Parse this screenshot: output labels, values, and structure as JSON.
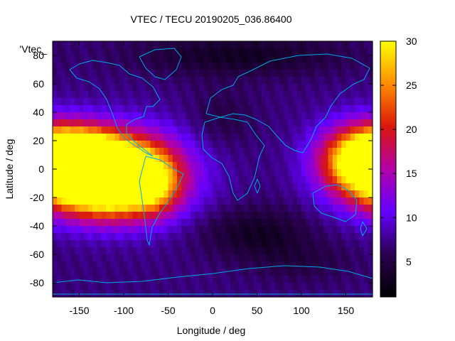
{
  "chart_data": {
    "type": "heatmap",
    "title": "VTEC / TECU 20190205_036.86400",
    "legend_key": "'Vtec_",
    "xlabel": "Longitude / deg",
    "ylabel": "Latitude / deg",
    "xlim": [
      -180,
      180
    ],
    "ylim": [
      -90,
      90
    ],
    "x_ticks": [
      -150,
      -100,
      -50,
      0,
      50,
      100,
      150
    ],
    "y_ticks": [
      -80,
      -60,
      -40,
      -20,
      0,
      20,
      40,
      60,
      80
    ],
    "colorbar": {
      "range": [
        1,
        30
      ],
      "ticks": [
        5,
        10,
        15,
        20,
        25,
        30
      ],
      "palette": [
        "#000000",
        "#2a0050",
        "#6400ff",
        "#b400a8",
        "#d9180c",
        "#ff8c00",
        "#ffff00"
      ]
    },
    "grid_step_deg": 5,
    "features": [
      {
        "lon": -150,
        "lat": 8,
        "value": 27,
        "sx": 40,
        "sy": 14
      },
      {
        "lon": -120,
        "lat": -12,
        "value": 26,
        "sx": 45,
        "sy": 16
      },
      {
        "lon": -95,
        "lat": 0,
        "value": 13,
        "sx": 50,
        "sy": 20
      },
      {
        "lon": -65,
        "lat": -10,
        "value": 8,
        "sx": 20,
        "sy": 16
      },
      {
        "lon": 170,
        "lat": 5,
        "value": 20,
        "sx": 35,
        "sy": 18
      },
      {
        "lon": 50,
        "lat": -45,
        "value": -4,
        "sx": 40,
        "sy": 12
      },
      {
        "lon": 10,
        "lat": 35,
        "value": -2,
        "sx": 25,
        "sy": 15
      },
      {
        "lon": 30,
        "lat": 80,
        "value": -4,
        "sx": 80,
        "sy": 10
      },
      {
        "lon": 100,
        "lat": -65,
        "value": -2,
        "sx": 40,
        "sy": 10
      }
    ],
    "base_value": 7
  }
}
